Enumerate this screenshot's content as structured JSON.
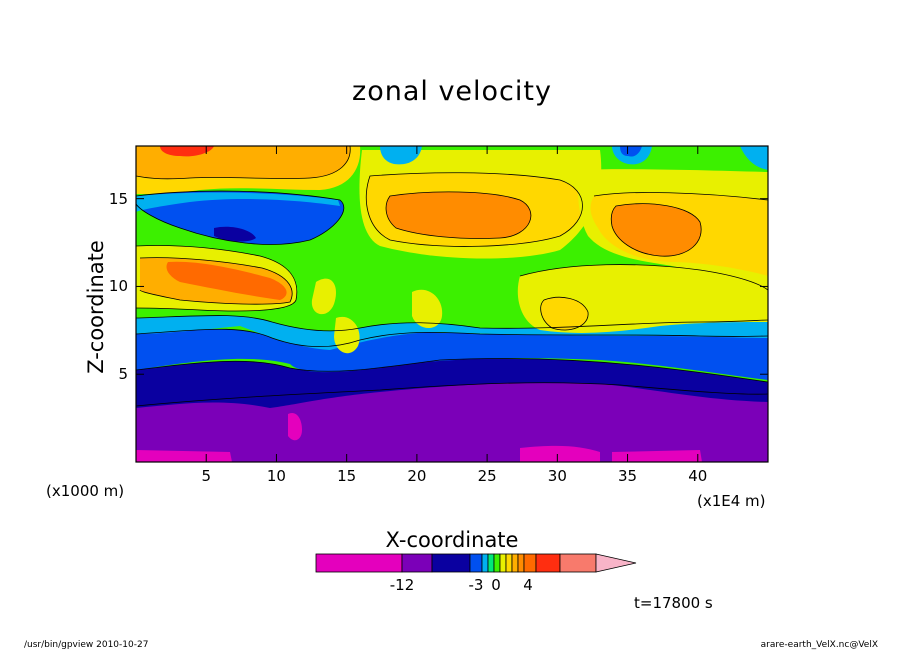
{
  "title": "zonal velocity",
  "chart_data": {
    "type": "heatmap",
    "title": "zonal velocity",
    "xlabel": "X-coordinate",
    "ylabel": "Z-coordinate",
    "x_unit": "(x1E4 m)",
    "y_unit": "(x1000 m)",
    "xlim": [
      0,
      45
    ],
    "ylim": [
      0,
      18
    ],
    "x_ticks": [
      5,
      10,
      15,
      20,
      25,
      30,
      35,
      40
    ],
    "y_ticks": [
      5,
      10,
      15
    ],
    "colorbar": {
      "tick_labels": [
        "-12",
        "-3",
        "0",
        "4"
      ],
      "colors": [
        "#e400bd",
        "#7b00b8",
        "#0a00a0",
        "#0050f0",
        "#00b0f0",
        "#00e878",
        "#3cf000",
        "#e8f000",
        "#ffd800",
        "#ffae00",
        "#ff8c00",
        "#ff6a00",
        "#ff2e10",
        "#f87a6c",
        "#f8b4c8"
      ],
      "extend": "max"
    },
    "time_label": "t=17800 s"
  },
  "footer": {
    "left": "/usr/bin/gpview  2010-10-27",
    "right": "arare-earth_VelX.nc@VelX"
  }
}
